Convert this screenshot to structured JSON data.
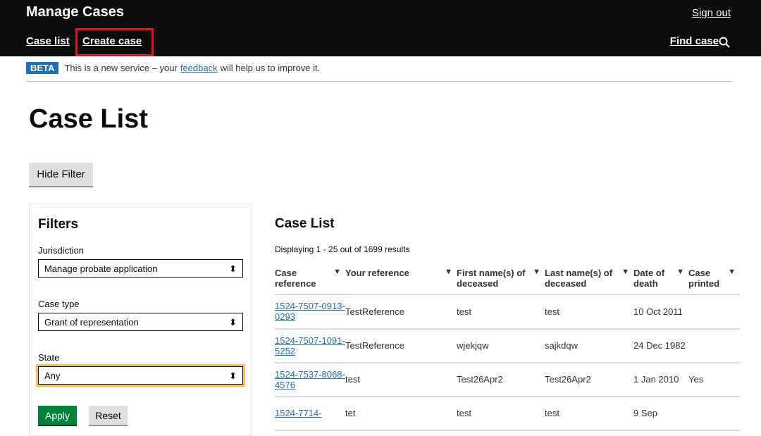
{
  "header": {
    "title": "Manage Cases",
    "sign_out": "Sign out",
    "nav": [
      "Case list",
      "Create case"
    ],
    "find_case": "Find case"
  },
  "beta": {
    "tag": "BETA",
    "before": "This is a new service – your",
    "link": "feedback",
    "after": "will help us to improve it."
  },
  "page_title": "Case List",
  "hide_filter": "Hide Filter",
  "filters": {
    "title": "Filters",
    "jurisdiction_label": "Jurisdiction",
    "jurisdiction_value": "Manage probate application",
    "case_type_label": "Case type",
    "case_type_value": "Grant of representation",
    "state_label": "State",
    "state_value": "Any",
    "apply": "Apply",
    "reset": "Reset"
  },
  "case_list": {
    "title": "Case List",
    "displaying": "Displaying 1 - 25 out of 1699 results",
    "columns": [
      "Case reference",
      "Your reference",
      "First name(s) of deceased",
      "Last name(s) of deceased",
      "Date of death",
      "Case printed"
    ],
    "rows": [
      [
        "1524-7507-0913-0293",
        "TestReference",
        "test",
        "test",
        "10 Oct 2011",
        ""
      ],
      [
        "1524-7507-1091-5252",
        "TestReference",
        "wjekjqw",
        "sajkdqw",
        "24 Dec 1982",
        ""
      ],
      [
        "1524-7537-8068-4576",
        "test",
        "Test26Apr2",
        "Test26Apr2",
        "1 Jan 2010",
        "Yes"
      ],
      [
        "1524-7714-",
        "tet",
        "test",
        "test",
        "9 Sep",
        ""
      ]
    ]
  }
}
